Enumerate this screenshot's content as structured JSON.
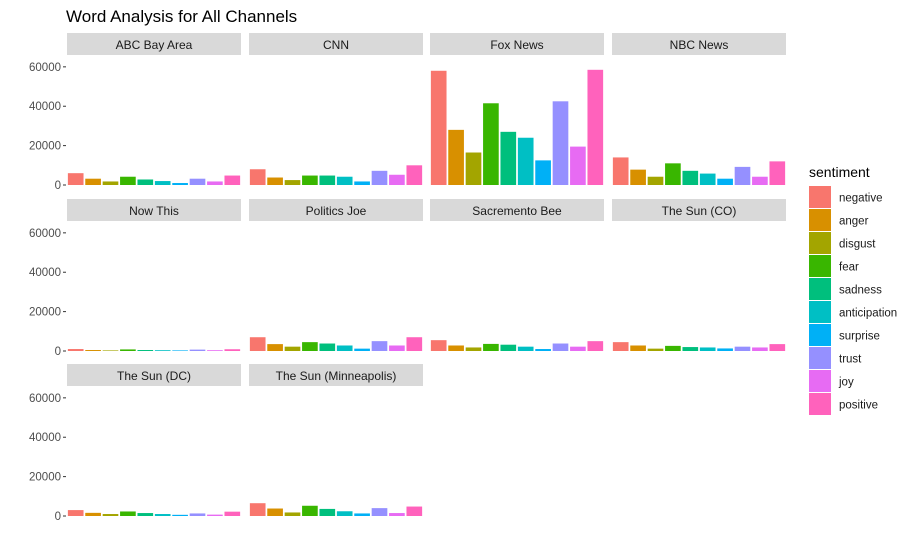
{
  "chart_data": {
    "type": "bar",
    "title": "Word Analysis for All Channels",
    "xlabel": "",
    "ylabel": "",
    "ylim": [
      0,
      65000
    ],
    "yticks": [
      0,
      20000,
      40000,
      60000
    ],
    "ytick_labels": [
      "0",
      "20000",
      "40000",
      "60000"
    ],
    "grid": false,
    "legend": {
      "title": "sentiment",
      "position": "right"
    },
    "sentiments": [
      "negative",
      "anger",
      "disgust",
      "fear",
      "sadness",
      "anticipation",
      "surprise",
      "trust",
      "joy",
      "positive"
    ],
    "colors": {
      "negative": "#F8766D",
      "anger": "#D89000",
      "disgust": "#A3A500",
      "fear": "#39B600",
      "sadness": "#00BF7D",
      "anticipation": "#00BFC4",
      "surprise": "#00B0F6",
      "trust": "#9590FF",
      "joy": "#E76BF3",
      "positive": "#FF62BC"
    },
    "facets": [
      {
        "name": "ABC Bay Area",
        "values": [
          6000,
          3200,
          1800,
          4200,
          2800,
          2000,
          1000,
          3200,
          1800,
          4800
        ]
      },
      {
        "name": "CNN",
        "values": [
          8000,
          3800,
          2500,
          4800,
          4800,
          4200,
          1800,
          7200,
          5200,
          10000
        ]
      },
      {
        "name": "Fox News",
        "values": [
          58000,
          28000,
          16500,
          41500,
          27000,
          24000,
          12500,
          42500,
          19500,
          58500
        ]
      },
      {
        "name": "NBC News",
        "values": [
          14000,
          7800,
          4200,
          11000,
          7200,
          5800,
          3200,
          9200,
          4200,
          12000
        ]
      },
      {
        "name": "Now This",
        "values": [
          1000,
          500,
          300,
          800,
          500,
          400,
          300,
          700,
          400,
          900
        ]
      },
      {
        "name": "Politics Joe",
        "values": [
          7000,
          3500,
          2200,
          4500,
          3800,
          2800,
          1200,
          5000,
          2800,
          7000
        ]
      },
      {
        "name": "Sacremento Bee",
        "values": [
          5500,
          2800,
          1800,
          3600,
          3200,
          2200,
          1000,
          3800,
          2200,
          5000
        ]
      },
      {
        "name": "The Sun (CO)",
        "values": [
          4500,
          2800,
          1200,
          2600,
          2000,
          1800,
          1300,
          2200,
          1800,
          3500
        ]
      },
      {
        "name": "The Sun (DC)",
        "values": [
          3000,
          1600,
          1000,
          2300,
          1500,
          1000,
          600,
          1300,
          700,
          2200
        ]
      },
      {
        "name": "The Sun (Minneapolis)",
        "values": [
          6500,
          3800,
          1800,
          5200,
          3600,
          2400,
          1300,
          4000,
          1500,
          4800
        ]
      }
    ]
  }
}
